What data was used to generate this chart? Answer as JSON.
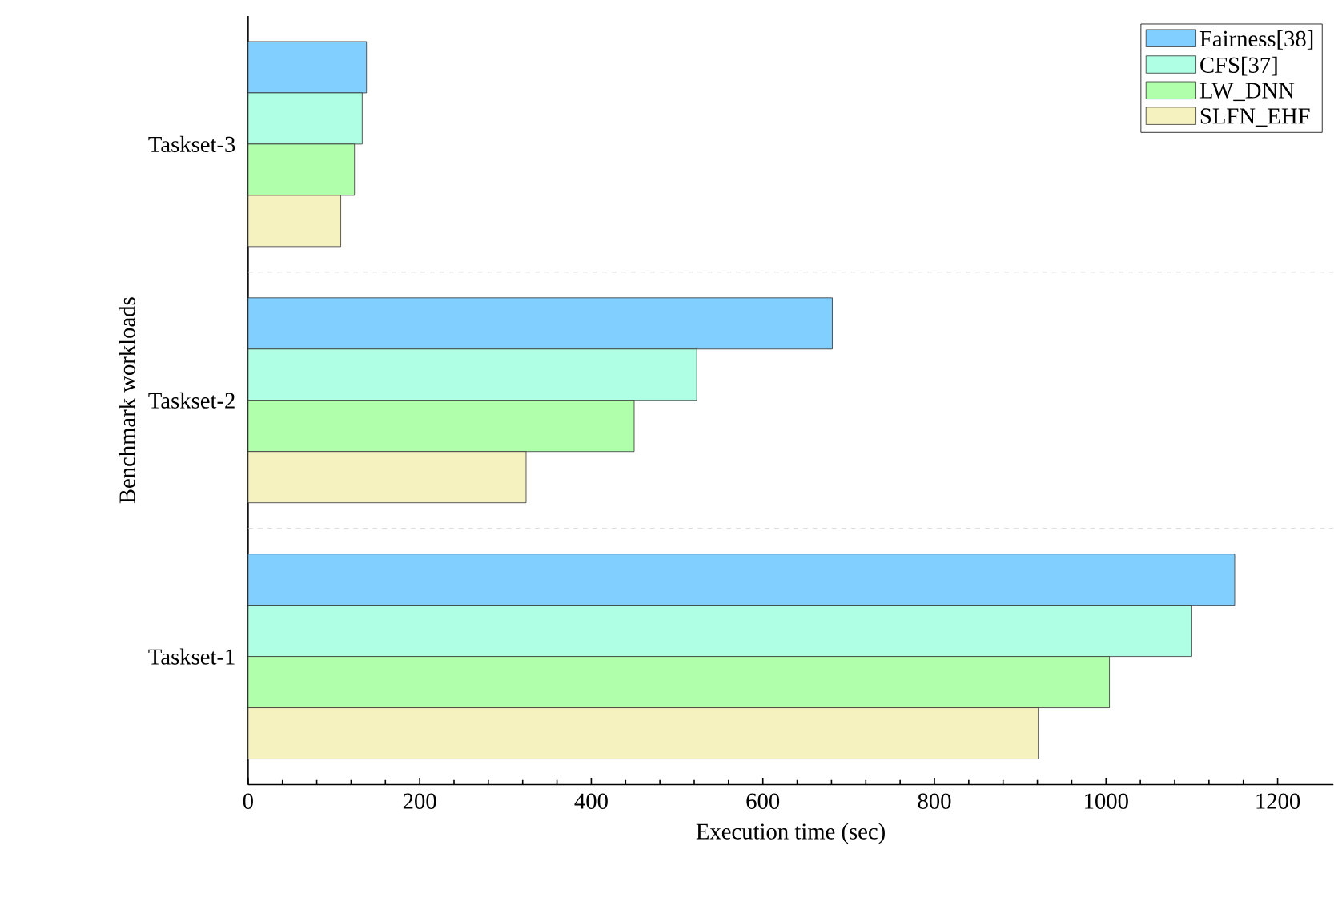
{
  "chart_data": {
    "type": "bar",
    "orientation": "horizontal",
    "xlabel": "Execution time (sec)",
    "ylabel": "Benchmark workloads",
    "categories": [
      "Taskset-3",
      "Taskset-2",
      "Taskset-1"
    ],
    "series": [
      {
        "name": "Fairness[38]",
        "color": "#80cfff",
        "values": [
          138,
          681,
          1150
        ]
      },
      {
        "name": "CFS[37]",
        "color": "#aeffe4",
        "values": [
          133,
          523,
          1100
        ]
      },
      {
        "name": "LW_DNN",
        "color": "#b0ffaa",
        "values": [
          124,
          450,
          1004
        ]
      },
      {
        "name": "SLFN_EHF",
        "color": "#f6f2c0",
        "values": [
          108,
          324,
          921
        ]
      }
    ],
    "xlim": [
      0,
      1265
    ],
    "xticks": [
      0,
      200,
      400,
      600,
      800,
      1000,
      1200
    ],
    "grid": "y",
    "legend": "top right"
  }
}
